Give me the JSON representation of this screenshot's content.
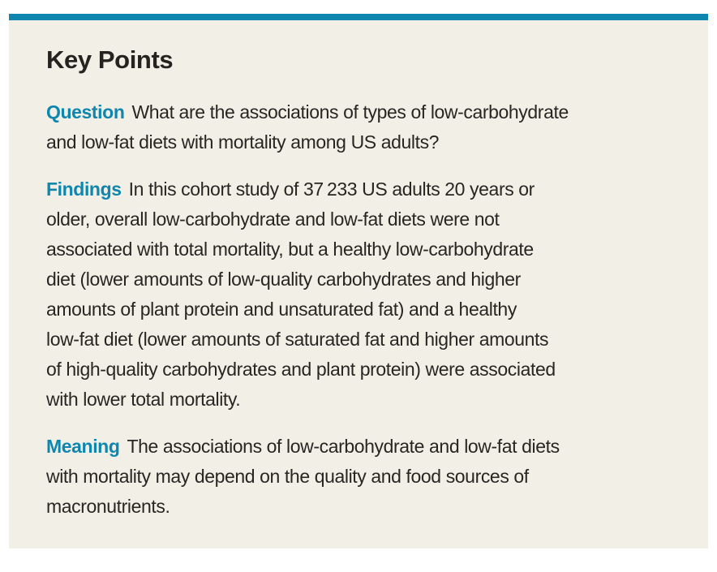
{
  "colors": {
    "accent": "#0e86ad",
    "box_background": "#f1efe6",
    "page_background": "#ffffff",
    "heading_text": "#262220",
    "body_text": "#2a2522"
  },
  "panel": {
    "title": "Key Points",
    "sections": [
      {
        "label": "Question",
        "text": "What are the associations of types of low-carbohydrate\nand low-fat diets with mortality among US adults?"
      },
      {
        "label": "Findings",
        "text": "In this cohort study of 37 233 US adults 20 years or\nolder, overall low-carbohydrate and low-fat diets were not\nassociated with total mortality, but a healthy low-carbohydrate\ndiet (lower amounts of low-quality carbohydrates and higher\namounts of plant protein and unsaturated fat) and a healthy\nlow-fat diet (lower amounts of saturated fat and higher amounts\nof high-quality carbohydrates and plant protein) were associated\nwith lower total mortality."
      },
      {
        "label": "Meaning",
        "text": "The associations of low-carbohydrate and low-fat diets\nwith mortality may depend on the quality and food sources of\nmacronutrients."
      }
    ]
  }
}
